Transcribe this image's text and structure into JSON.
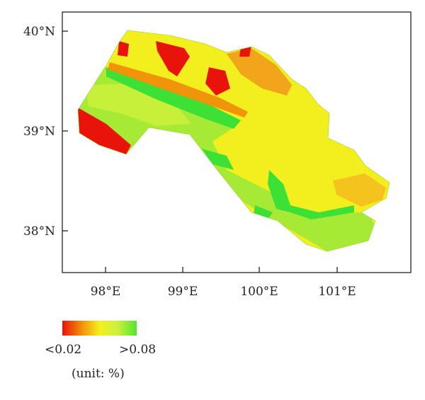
{
  "map": {
    "latitude_labels": [
      "40°N",
      "39°N",
      "38°N"
    ],
    "longitude_labels": [
      "98°E",
      "99°E",
      "100°E",
      "101°E"
    ]
  },
  "legend": {
    "min_label": "<0.02",
    "max_label": ">0.08",
    "unit": "(unit: %)",
    "colors": [
      "#e8140a",
      "#f08c0a",
      "#f5f01e",
      "#c8f03c",
      "#50e632"
    ]
  }
}
